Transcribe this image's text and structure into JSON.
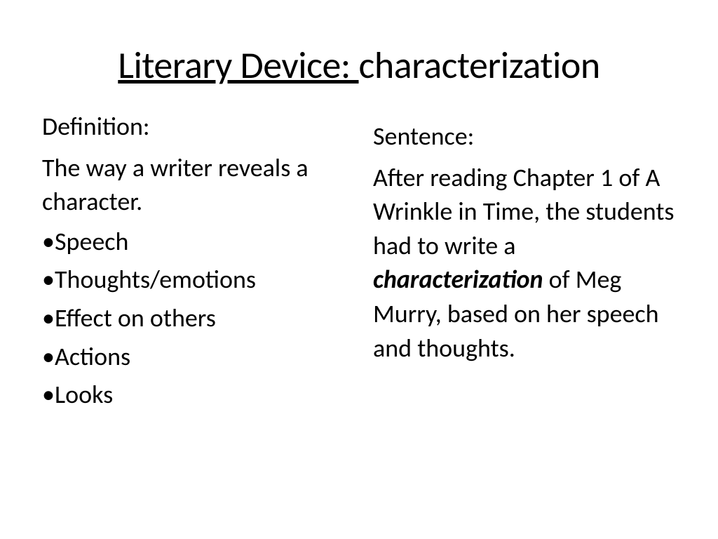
{
  "title": {
    "underlined": "Literary Device: ",
    "rest": "characterization"
  },
  "left": {
    "heading": "Definition:",
    "text": "The way a writer reveals a character.",
    "bullets": [
      "Speech",
      "Thoughts/emotions",
      "Effect on others",
      "Actions",
      "Looks"
    ]
  },
  "right": {
    "heading": "Sentence:",
    "sentence_pre": "After reading Chapter 1 of A Wrinkle in Time, the students had to write a ",
    "sentence_emph": "characterization",
    "sentence_post": " of Meg Murry, based on her speech and thoughts."
  },
  "style": {
    "background_color": "#ffffff",
    "text_color": "#000000",
    "title_fontsize": 54,
    "body_fontsize": 36,
    "font_family": "Calibri"
  }
}
